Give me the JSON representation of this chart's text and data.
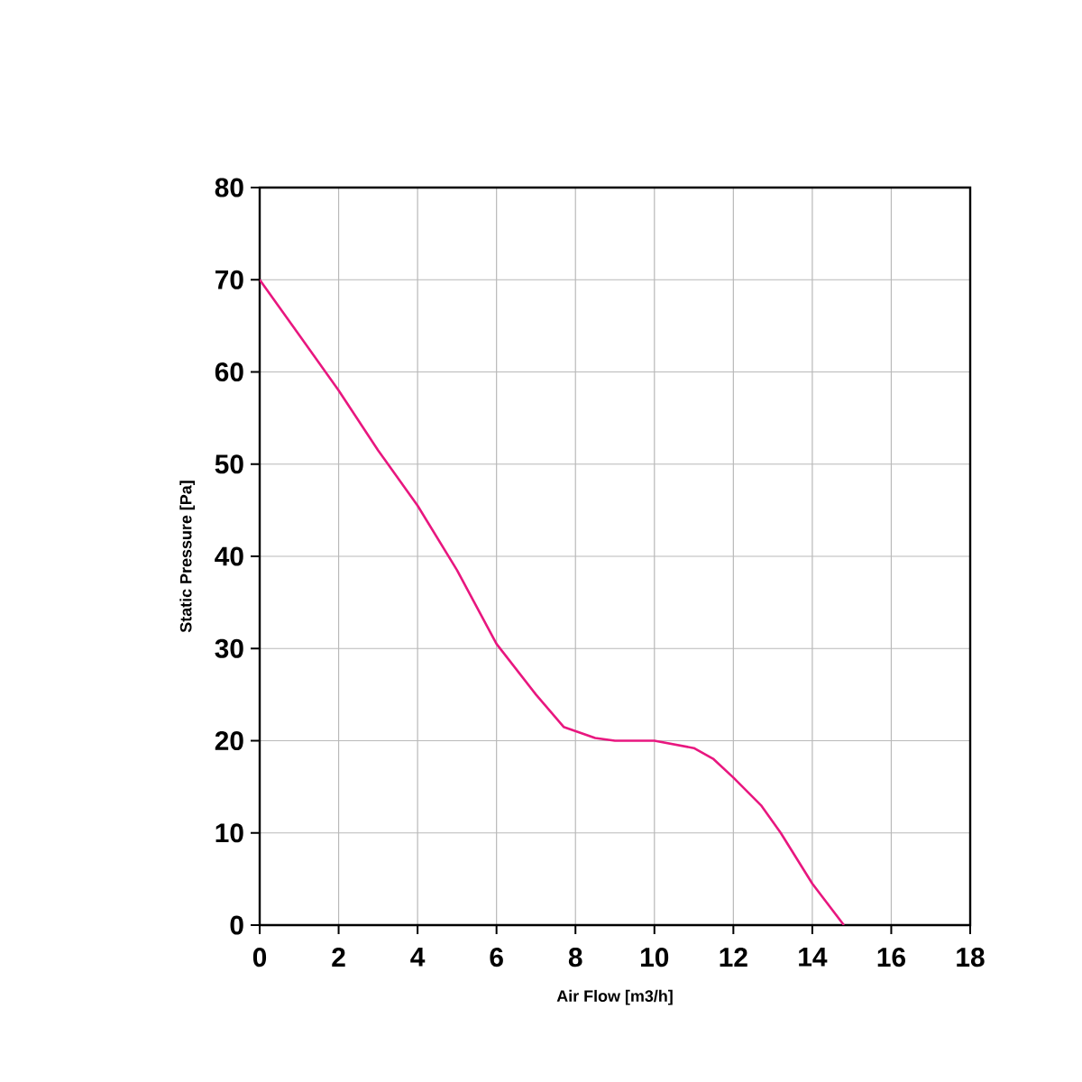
{
  "chart_data": {
    "type": "line",
    "xlabel": "Air Flow [m3/h]",
    "ylabel": "Static Pressure [Pa]",
    "x": [
      0,
      1,
      2,
      3,
      4,
      5,
      6,
      7,
      7.7,
      8.5,
      9,
      10,
      11,
      11.5,
      12,
      12.7,
      13.2,
      14,
      14.8
    ],
    "series": [
      {
        "color": "#e8177f",
        "values": [
          70,
          64,
          58,
          51.5,
          45.5,
          38.5,
          30.5,
          25,
          21.5,
          20.3,
          20,
          20,
          19.2,
          18,
          16,
          13,
          10,
          4.5,
          0
        ]
      }
    ],
    "xlim": [
      0,
      18
    ],
    "xticks": [
      0,
      2,
      4,
      6,
      8,
      10,
      12,
      14,
      16,
      18
    ],
    "ylim": [
      0,
      80
    ],
    "yticks": [
      0,
      10,
      20,
      30,
      40,
      50,
      60,
      70,
      80
    ],
    "grid": true,
    "marker": "none",
    "line_style": "solid",
    "legend": false
  }
}
